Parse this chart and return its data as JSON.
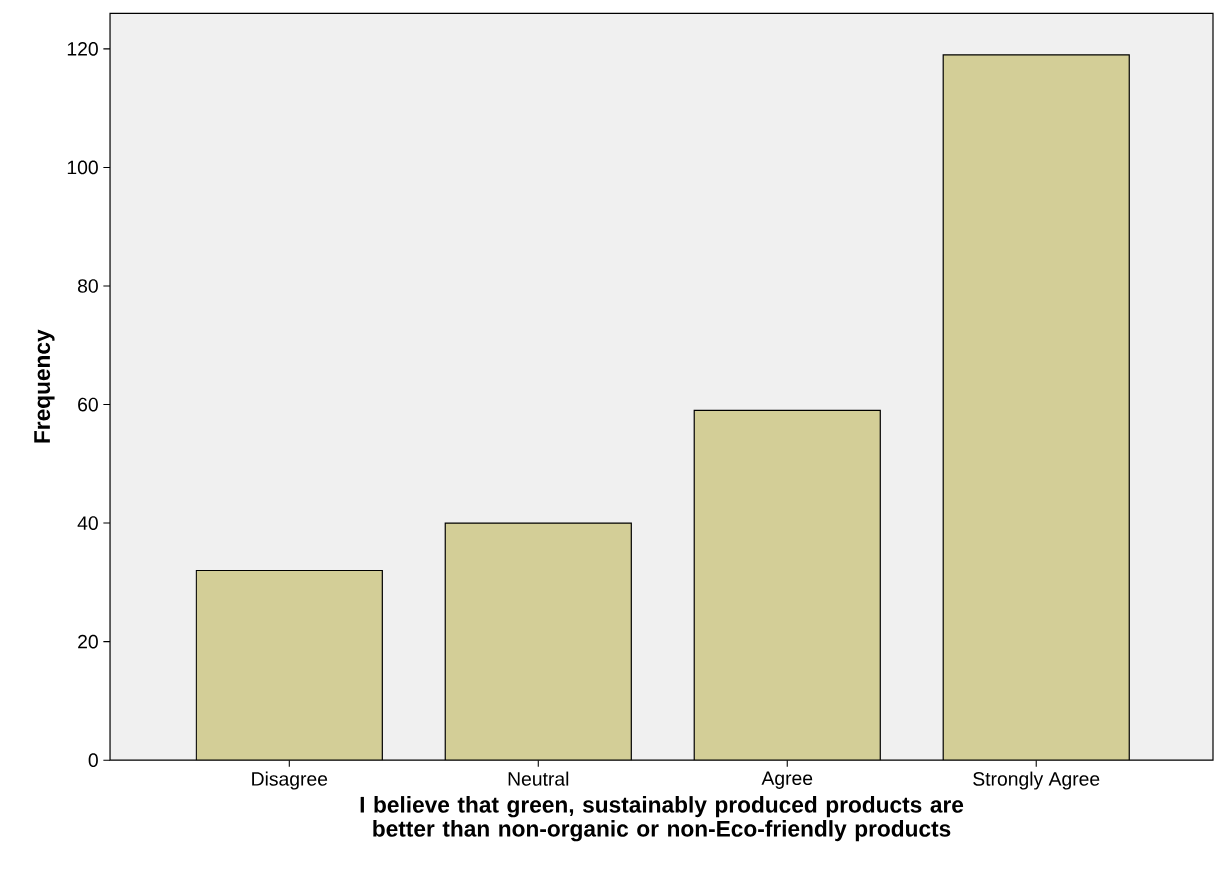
{
  "chart_data": {
    "type": "bar",
    "categories": [
      "Disagree",
      "Neutral",
      "Agree",
      "Strongly Agree"
    ],
    "values": [
      32,
      40,
      59,
      119
    ],
    "color": "#d3ce97",
    "xlabel": "I believe that green, sustainably produced products are better than non-organic or non-Eco-friendly products",
    "ylabel": "Frequency",
    "ylim": [
      0,
      126
    ],
    "yticks": [
      0,
      20,
      40,
      60,
      80,
      100,
      120
    ],
    "grid": false
  }
}
